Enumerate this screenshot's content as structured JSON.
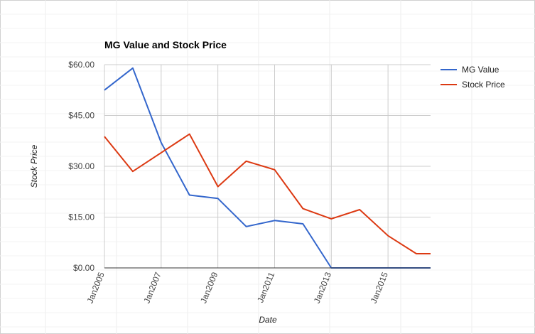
{
  "chart_data": {
    "type": "line",
    "title": "MG Value and Stock Price",
    "xlabel": "Date",
    "ylabel": "Stock Price",
    "x": [
      "2005-01",
      "2006-01",
      "2007-01",
      "2008-01",
      "2009-01",
      "2010-01",
      "2011-01",
      "2012-01",
      "2013-01",
      "2014-01",
      "2015-01",
      "2016-01",
      "2016-07"
    ],
    "x_ticks": [
      "Jan2005",
      "Jan2007",
      "Jan2009",
      "Jan2011",
      "Jan2013",
      "Jan2015"
    ],
    "y_ticks": [
      "$0.00",
      "$15.00",
      "$30.00",
      "$45.00",
      "$60.00"
    ],
    "ylim": [
      0,
      60
    ],
    "grid": true,
    "legend_position": "right",
    "series": [
      {
        "name": "MG Value",
        "color": "#3366cc",
        "values": [
          52.5,
          59.0,
          37.0,
          21.5,
          20.5,
          12.2,
          14.0,
          13.0,
          0,
          0,
          0,
          0,
          0
        ]
      },
      {
        "name": "Stock Price",
        "color": "#dc3912",
        "values": [
          38.8,
          28.5,
          34.0,
          39.5,
          24.0,
          31.5,
          29.0,
          17.5,
          14.5,
          17.2,
          9.5,
          4.2,
          4.2
        ]
      }
    ]
  }
}
